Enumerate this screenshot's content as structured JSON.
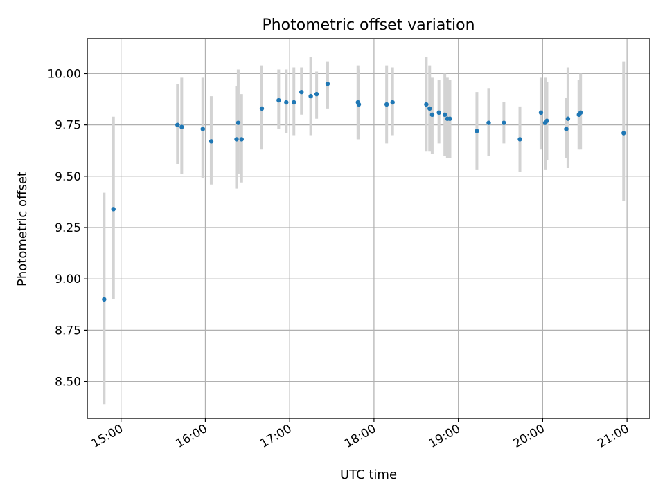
{
  "chart_data": {
    "type": "scatter",
    "title": "Photometric offset variation",
    "xlabel": "UTC time",
    "ylabel": "Photometric offset",
    "grid": true,
    "x_unit": "hours UTC",
    "xlim": [
      14.6,
      21.27
    ],
    "ylim": [
      8.32,
      10.17
    ],
    "x_ticks": [
      {
        "value": 15,
        "label": "15:00"
      },
      {
        "value": 16,
        "label": "16:00"
      },
      {
        "value": 17,
        "label": "17:00"
      },
      {
        "value": 18,
        "label": "18:00"
      },
      {
        "value": 19,
        "label": "19:00"
      },
      {
        "value": 20,
        "label": "20:00"
      },
      {
        "value": 21,
        "label": "21:00"
      }
    ],
    "y_ticks": [
      {
        "value": 8.5,
        "label": "8.50"
      },
      {
        "value": 8.75,
        "label": "8.75"
      },
      {
        "value": 9.0,
        "label": "9.00"
      },
      {
        "value": 9.25,
        "label": "9.25"
      },
      {
        "value": 9.5,
        "label": "9.50"
      },
      {
        "value": 9.75,
        "label": "9.75"
      },
      {
        "value": 10.0,
        "label": "10.00"
      }
    ],
    "marker_color": "#1f77b4",
    "errorbar_color": "#d3d3d3",
    "points": [
      {
        "x": 14.8,
        "y": 8.9,
        "lo": 8.39,
        "hi": 9.42
      },
      {
        "x": 14.91,
        "y": 9.34,
        "lo": 8.9,
        "hi": 9.79
      },
      {
        "x": 15.67,
        "y": 9.75,
        "lo": 9.56,
        "hi": 9.95
      },
      {
        "x": 15.72,
        "y": 9.74,
        "lo": 9.51,
        "hi": 9.98
      },
      {
        "x": 15.97,
        "y": 9.73,
        "lo": 9.49,
        "hi": 9.98
      },
      {
        "x": 16.07,
        "y": 9.67,
        "lo": 9.46,
        "hi": 9.89
      },
      {
        "x": 16.37,
        "y": 9.68,
        "lo": 9.44,
        "hi": 9.94
      },
      {
        "x": 16.39,
        "y": 9.76,
        "lo": 9.51,
        "hi": 10.02
      },
      {
        "x": 16.43,
        "y": 9.68,
        "lo": 9.47,
        "hi": 9.9
      },
      {
        "x": 16.67,
        "y": 9.83,
        "lo": 9.63,
        "hi": 10.04
      },
      {
        "x": 16.87,
        "y": 9.87,
        "lo": 9.73,
        "hi": 10.02
      },
      {
        "x": 16.96,
        "y": 9.86,
        "lo": 9.71,
        "hi": 10.02
      },
      {
        "x": 17.05,
        "y": 9.86,
        "lo": 9.7,
        "hi": 10.03
      },
      {
        "x": 17.14,
        "y": 9.91,
        "lo": 9.8,
        "hi": 10.03
      },
      {
        "x": 17.25,
        "y": 9.89,
        "lo": 9.7,
        "hi": 10.08
      },
      {
        "x": 17.32,
        "y": 9.9,
        "lo": 9.78,
        "hi": 10.01
      },
      {
        "x": 17.45,
        "y": 9.95,
        "lo": 9.83,
        "hi": 10.06
      },
      {
        "x": 17.81,
        "y": 9.86,
        "lo": 9.68,
        "hi": 10.04
      },
      {
        "x": 17.82,
        "y": 9.85,
        "lo": 9.68,
        "hi": 10.02
      },
      {
        "x": 18.15,
        "y": 9.85,
        "lo": 9.66,
        "hi": 10.04
      },
      {
        "x": 18.22,
        "y": 9.86,
        "lo": 9.7,
        "hi": 10.03
      },
      {
        "x": 18.62,
        "y": 9.85,
        "lo": 9.62,
        "hi": 10.08
      },
      {
        "x": 18.66,
        "y": 9.83,
        "lo": 9.62,
        "hi": 10.04
      },
      {
        "x": 18.69,
        "y": 9.8,
        "lo": 9.61,
        "hi": 9.98
      },
      {
        "x": 18.77,
        "y": 9.81,
        "lo": 9.66,
        "hi": 9.97
      },
      {
        "x": 18.84,
        "y": 9.8,
        "lo": 9.6,
        "hi": 10.0
      },
      {
        "x": 18.87,
        "y": 9.78,
        "lo": 9.59,
        "hi": 9.98
      },
      {
        "x": 18.9,
        "y": 9.78,
        "lo": 9.59,
        "hi": 9.97
      },
      {
        "x": 19.22,
        "y": 9.72,
        "lo": 9.53,
        "hi": 9.91
      },
      {
        "x": 19.36,
        "y": 9.76,
        "lo": 9.6,
        "hi": 9.93
      },
      {
        "x": 19.54,
        "y": 9.76,
        "lo": 9.66,
        "hi": 9.86
      },
      {
        "x": 19.73,
        "y": 9.68,
        "lo": 9.52,
        "hi": 9.84
      },
      {
        "x": 19.98,
        "y": 9.81,
        "lo": 9.63,
        "hi": 9.98
      },
      {
        "x": 20.03,
        "y": 9.76,
        "lo": 9.53,
        "hi": 9.98
      },
      {
        "x": 20.05,
        "y": 9.77,
        "lo": 9.58,
        "hi": 9.96
      },
      {
        "x": 20.28,
        "y": 9.73,
        "lo": 9.59,
        "hi": 9.88
      },
      {
        "x": 20.3,
        "y": 9.78,
        "lo": 9.54,
        "hi": 10.03
      },
      {
        "x": 20.43,
        "y": 9.8,
        "lo": 9.63,
        "hi": 9.97
      },
      {
        "x": 20.45,
        "y": 9.81,
        "lo": 9.63,
        "hi": 10.0
      },
      {
        "x": 20.96,
        "y": 9.71,
        "lo": 9.38,
        "hi": 10.06
      }
    ]
  }
}
